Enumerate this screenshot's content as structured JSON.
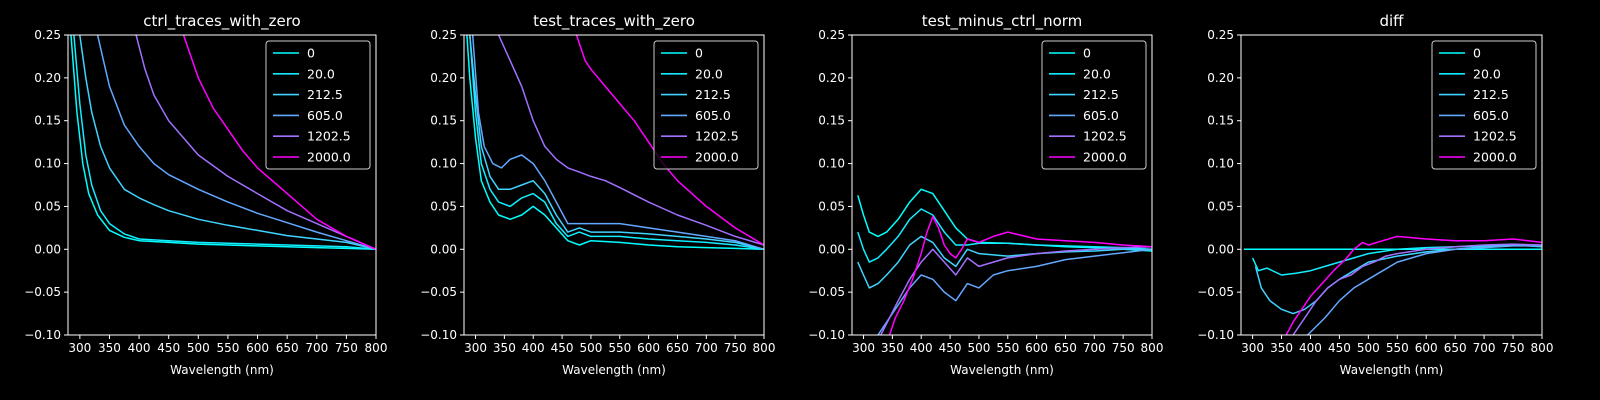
{
  "chart_data": [
    {
      "type": "line",
      "title": "ctrl_traces_with_zero",
      "xlabel": "Wavelength (nm)",
      "ylabel": "",
      "xlim": [
        280,
        800
      ],
      "ylim": [
        -0.1,
        0.25
      ],
      "xticks": [
        "300",
        "350",
        "400",
        "450",
        "500",
        "550",
        "600",
        "650",
        "700",
        "750",
        "800"
      ],
      "yticks": [
        "−0.10",
        "−0.05",
        "0.00",
        "0.05",
        "0.10",
        "0.15",
        "0.20",
        "0.25"
      ],
      "legend": "top-right",
      "series": [
        {
          "name": "0",
          "color": "#00ffff",
          "x": [
            285,
            295,
            305,
            315,
            330,
            350,
            375,
            400,
            450,
            500,
            550,
            600,
            650,
            700,
            750,
            800
          ],
          "y": [
            0.25,
            0.16,
            0.1,
            0.065,
            0.04,
            0.022,
            0.014,
            0.01,
            0.008,
            0.006,
            0.005,
            0.004,
            0.003,
            0.002,
            0.001,
            0.0
          ]
        },
        {
          "name": "20.0",
          "color": "#12edff",
          "x": [
            290,
            300,
            310,
            320,
            335,
            350,
            375,
            400,
            450,
            500,
            550,
            600,
            650,
            700,
            750,
            800
          ],
          "y": [
            0.25,
            0.17,
            0.11,
            0.075,
            0.045,
            0.03,
            0.018,
            0.012,
            0.01,
            0.008,
            0.007,
            0.006,
            0.005,
            0.004,
            0.003,
            0.0
          ]
        },
        {
          "name": "212.5",
          "color": "#3ed4ff",
          "x": [
            300,
            310,
            320,
            335,
            350,
            375,
            400,
            425,
            450,
            500,
            550,
            600,
            650,
            700,
            750,
            800
          ],
          "y": [
            0.25,
            0.2,
            0.16,
            0.12,
            0.095,
            0.07,
            0.06,
            0.052,
            0.045,
            0.035,
            0.028,
            0.022,
            0.016,
            0.012,
            0.008,
            0.0
          ]
        },
        {
          "name": "605.0",
          "color": "#62a8ff",
          "x": [
            330,
            340,
            350,
            375,
            400,
            425,
            450,
            500,
            550,
            600,
            650,
            700,
            750,
            800
          ],
          "y": [
            0.25,
            0.22,
            0.19,
            0.145,
            0.12,
            0.1,
            0.087,
            0.07,
            0.055,
            0.042,
            0.031,
            0.02,
            0.01,
            0.0
          ]
        },
        {
          "name": "1202.5",
          "color": "#a070ff",
          "x": [
            395,
            410,
            425,
            450,
            475,
            500,
            550,
            600,
            650,
            700,
            750,
            800
          ],
          "y": [
            0.25,
            0.21,
            0.18,
            0.15,
            0.13,
            0.11,
            0.085,
            0.065,
            0.045,
            0.03,
            0.015,
            0.0
          ]
        },
        {
          "name": "2000.0",
          "color": "#ff00ff",
          "x": [
            475,
            490,
            500,
            525,
            550,
            575,
            600,
            650,
            700,
            750,
            800
          ],
          "y": [
            0.25,
            0.22,
            0.2,
            0.165,
            0.14,
            0.115,
            0.095,
            0.065,
            0.035,
            0.015,
            0.0
          ]
        }
      ]
    },
    {
      "type": "line",
      "title": "test_traces_with_zero",
      "xlabel": "Wavelength (nm)",
      "ylabel": "",
      "xlim": [
        280,
        800
      ],
      "ylim": [
        -0.1,
        0.25
      ],
      "xticks": [
        "300",
        "350",
        "400",
        "450",
        "500",
        "550",
        "600",
        "650",
        "700",
        "750",
        "800"
      ],
      "yticks": [
        "−0.10",
        "−0.05",
        "0.00",
        "0.05",
        "0.10",
        "0.15",
        "0.20",
        "0.25"
      ],
      "legend": "top-right",
      "series": [
        {
          "name": "0",
          "color": "#00ffff",
          "x": [
            285,
            290,
            300,
            310,
            325,
            340,
            360,
            380,
            400,
            420,
            440,
            460,
            480,
            500,
            550,
            600,
            650,
            700,
            750,
            800
          ],
          "y": [
            0.25,
            0.2,
            0.13,
            0.08,
            0.055,
            0.04,
            0.035,
            0.04,
            0.05,
            0.04,
            0.025,
            0.01,
            0.005,
            0.01,
            0.008,
            0.005,
            0.003,
            0.002,
            0.001,
            0.0
          ]
        },
        {
          "name": "20.0",
          "color": "#12edff",
          "x": [
            290,
            300,
            310,
            325,
            340,
            360,
            380,
            400,
            420,
            440,
            460,
            480,
            500,
            550,
            600,
            650,
            700,
            750,
            800
          ],
          "y": [
            0.25,
            0.16,
            0.1,
            0.07,
            0.055,
            0.05,
            0.06,
            0.065,
            0.055,
            0.03,
            0.015,
            0.02,
            0.015,
            0.015,
            0.012,
            0.01,
            0.008,
            0.005,
            0.0
          ]
        },
        {
          "name": "212.5",
          "color": "#3ed4ff",
          "x": [
            290,
            300,
            310,
            325,
            340,
            360,
            380,
            400,
            420,
            440,
            460,
            480,
            500,
            550,
            600,
            650,
            700,
            750,
            800
          ],
          "y": [
            0.25,
            0.18,
            0.12,
            0.085,
            0.07,
            0.07,
            0.075,
            0.08,
            0.065,
            0.04,
            0.02,
            0.025,
            0.02,
            0.02,
            0.018,
            0.015,
            0.012,
            0.008,
            0.0
          ]
        },
        {
          "name": "605.0",
          "color": "#62a8ff",
          "x": [
            295,
            305,
            315,
            330,
            345,
            360,
            380,
            400,
            420,
            440,
            460,
            480,
            500,
            550,
            600,
            650,
            700,
            750,
            800
          ],
          "y": [
            0.25,
            0.16,
            0.12,
            0.1,
            0.095,
            0.105,
            0.11,
            0.1,
            0.08,
            0.055,
            0.03,
            0.03,
            0.03,
            0.03,
            0.025,
            0.02,
            0.015,
            0.01,
            0.0
          ]
        },
        {
          "name": "1202.5",
          "color": "#a070ff",
          "x": [
            340,
            360,
            380,
            400,
            420,
            440,
            460,
            480,
            500,
            525,
            550,
            600,
            650,
            700,
            750,
            800
          ],
          "y": [
            0.25,
            0.22,
            0.19,
            0.15,
            0.12,
            0.105,
            0.095,
            0.09,
            0.085,
            0.08,
            0.072,
            0.055,
            0.04,
            0.028,
            0.015,
            0.005
          ]
        },
        {
          "name": "2000.0",
          "color": "#ff00ff",
          "x": [
            475,
            490,
            500,
            525,
            550,
            575,
            600,
            625,
            650,
            700,
            750,
            800
          ],
          "y": [
            0.25,
            0.22,
            0.21,
            0.19,
            0.17,
            0.15,
            0.125,
            0.1,
            0.08,
            0.05,
            0.025,
            0.005
          ]
        }
      ]
    },
    {
      "type": "line",
      "title": "test_minus_ctrl_norm",
      "xlabel": "Wavelength (nm)",
      "ylabel": "",
      "xlim": [
        280,
        800
      ],
      "ylim": [
        -0.1,
        0.25
      ],
      "xticks": [
        "300",
        "350",
        "400",
        "450",
        "500",
        "550",
        "600",
        "650",
        "700",
        "750",
        "800"
      ],
      "yticks": [
        "−0.10",
        "−0.05",
        "0.00",
        "0.05",
        "0.10",
        "0.15",
        "0.20",
        "0.25"
      ],
      "legend": "top-right",
      "series": [
        {
          "name": "0",
          "color": "#00ffff",
          "x": [
            290,
            300,
            310,
            325,
            340,
            360,
            380,
            400,
            420,
            440,
            460,
            480,
            500,
            550,
            600,
            650,
            700,
            750,
            800
          ],
          "y": [
            0.063,
            0.04,
            0.02,
            0.015,
            0.02,
            0.035,
            0.055,
            0.07,
            0.065,
            0.045,
            0.025,
            0.012,
            0.008,
            0.007,
            0.005,
            0.003,
            0.002,
            0.0,
            -0.002
          ]
        },
        {
          "name": "20.0",
          "color": "#12edff",
          "x": [
            290,
            300,
            310,
            325,
            340,
            360,
            380,
            400,
            420,
            440,
            460,
            480,
            500,
            550,
            600,
            650,
            700,
            750,
            800
          ],
          "y": [
            0.02,
            0.0,
            -0.015,
            -0.01,
            0.0,
            0.015,
            0.035,
            0.047,
            0.04,
            0.02,
            0.005,
            0.005,
            0.007,
            0.007,
            0.005,
            0.004,
            0.003,
            0.002,
            0.0
          ]
        },
        {
          "name": "212.5",
          "color": "#3ed4ff",
          "x": [
            290,
            300,
            310,
            325,
            340,
            360,
            380,
            400,
            420,
            440,
            460,
            480,
            500,
            550,
            600,
            650,
            700,
            750,
            800
          ],
          "y": [
            -0.015,
            -0.03,
            -0.045,
            -0.04,
            -0.03,
            -0.015,
            0.005,
            0.015,
            0.008,
            -0.01,
            -0.02,
            0.0,
            -0.005,
            -0.008,
            -0.005,
            -0.003,
            -0.002,
            0.0,
            0.0
          ]
        },
        {
          "name": "605.0",
          "color": "#62a8ff",
          "x": [
            325,
            335,
            350,
            365,
            380,
            400,
            420,
            440,
            460,
            480,
            500,
            525,
            550,
            600,
            650,
            700,
            750,
            800
          ],
          "y": [
            -0.1,
            -0.09,
            -0.075,
            -0.06,
            -0.045,
            -0.03,
            -0.035,
            -0.05,
            -0.06,
            -0.04,
            -0.045,
            -0.03,
            -0.025,
            -0.02,
            -0.012,
            -0.008,
            -0.004,
            0.0
          ]
        },
        {
          "name": "1202.5",
          "color": "#a070ff",
          "x": [
            330,
            345,
            360,
            380,
            400,
            420,
            440,
            460,
            480,
            500,
            525,
            550,
            600,
            650,
            700,
            750,
            800
          ],
          "y": [
            -0.1,
            -0.08,
            -0.06,
            -0.035,
            -0.015,
            0.0,
            -0.015,
            -0.03,
            -0.01,
            -0.02,
            -0.015,
            -0.01,
            -0.005,
            -0.002,
            0.0,
            0.002,
            0.003
          ]
        },
        {
          "name": "2000.0",
          "color": "#ff00ff",
          "x": [
            345,
            355,
            370,
            385,
            400,
            410,
            420,
            430,
            440,
            450,
            460,
            470,
            480,
            500,
            525,
            550,
            600,
            650,
            700,
            750,
            800
          ],
          "y": [
            -0.1,
            -0.08,
            -0.06,
            -0.035,
            -0.005,
            0.02,
            0.038,
            0.025,
            0.005,
            -0.005,
            -0.01,
            0.0,
            0.012,
            0.008,
            0.015,
            0.02,
            0.012,
            0.01,
            0.008,
            0.005,
            0.003
          ]
        }
      ]
    },
    {
      "type": "line",
      "title": "diff",
      "xlabel": "Wavelength (nm)",
      "ylabel": "",
      "xlim": [
        280,
        800
      ],
      "ylim": [
        -0.1,
        0.25
      ],
      "xticks": [
        "300",
        "350",
        "400",
        "450",
        "500",
        "550",
        "600",
        "650",
        "700",
        "750",
        "800"
      ],
      "yticks": [
        "−0.10",
        "−0.05",
        "0.00",
        "0.05",
        "0.10",
        "0.15",
        "0.20",
        "0.25"
      ],
      "legend": "top-right",
      "series": [
        {
          "name": "0",
          "color": "#00ffff",
          "x": [
            285,
            300,
            400,
            500,
            600,
            700,
            800
          ],
          "y": [
            0.0,
            0.0,
            0.0,
            0.0,
            0.0,
            0.0,
            0.0
          ]
        },
        {
          "name": "20.0",
          "color": "#12edff",
          "x": [
            300,
            310,
            325,
            350,
            375,
            400,
            425,
            450,
            475,
            500,
            550,
            600,
            650,
            700,
            750,
            800
          ],
          "y": [
            -0.01,
            -0.025,
            -0.022,
            -0.03,
            -0.028,
            -0.025,
            -0.02,
            -0.015,
            -0.01,
            -0.005,
            0.0,
            0.002,
            0.003,
            0.004,
            0.005,
            0.003
          ]
        },
        {
          "name": "212.5",
          "color": "#3ed4ff",
          "x": [
            305,
            315,
            330,
            350,
            370,
            390,
            410,
            430,
            450,
            475,
            500,
            550,
            600,
            650,
            700,
            750,
            800
          ],
          "y": [
            -0.02,
            -0.045,
            -0.06,
            -0.07,
            -0.075,
            -0.07,
            -0.06,
            -0.045,
            -0.035,
            -0.025,
            -0.015,
            -0.008,
            -0.003,
            0.0,
            0.003,
            0.005,
            0.004
          ]
        },
        {
          "name": "605.0",
          "color": "#62a8ff",
          "x": [
            395,
            410,
            425,
            450,
            475,
            500,
            525,
            550,
            575,
            600,
            650,
            700,
            750,
            800
          ],
          "y": [
            -0.1,
            -0.09,
            -0.08,
            -0.06,
            -0.045,
            -0.035,
            -0.025,
            -0.015,
            -0.01,
            -0.005,
            0.0,
            0.002,
            0.004,
            0.004
          ]
        },
        {
          "name": "1202.5",
          "color": "#a070ff",
          "x": [
            370,
            390,
            410,
            430,
            450,
            470,
            490,
            510,
            530,
            550,
            600,
            650,
            700,
            750,
            800
          ],
          "y": [
            -0.1,
            -0.08,
            -0.06,
            -0.045,
            -0.035,
            -0.03,
            -0.02,
            -0.015,
            -0.008,
            -0.005,
            0.0,
            0.003,
            0.005,
            0.006,
            0.005
          ]
        },
        {
          "name": "2000.0",
          "color": "#ff00ff",
          "x": [
            358,
            370,
            385,
            400,
            420,
            440,
            460,
            475,
            490,
            500,
            525,
            550,
            600,
            650,
            700,
            750,
            800
          ],
          "y": [
            -0.1,
            -0.085,
            -0.07,
            -0.055,
            -0.04,
            -0.025,
            -0.012,
            0.0,
            0.008,
            0.005,
            0.01,
            0.015,
            0.012,
            0.01,
            0.01,
            0.012,
            0.008
          ]
        }
      ]
    }
  ]
}
